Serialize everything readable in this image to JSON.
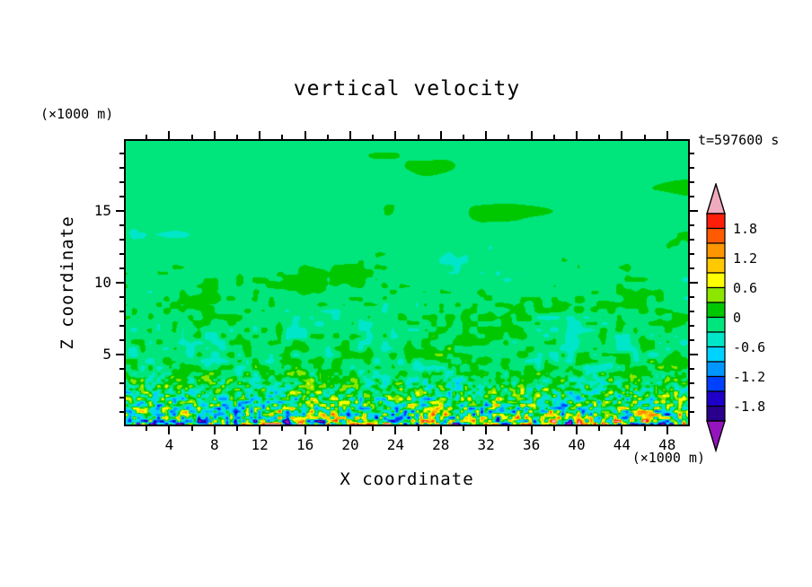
{
  "title": "vertical velocity",
  "timestamp": "t=597600 s",
  "axes": {
    "x": {
      "label": "X coordinate",
      "unit": "(×1000 m)",
      "range": [
        0,
        50
      ],
      "major_ticks": [
        4,
        8,
        12,
        16,
        20,
        24,
        28,
        32,
        36,
        40,
        44,
        48
      ],
      "minor_step": 2
    },
    "z": {
      "label": "Z coordinate",
      "unit": "(×1000 m)",
      "range": [
        0,
        20
      ],
      "major_ticks": [
        5,
        10,
        15
      ],
      "minor_step": 1
    }
  },
  "chart_data": {
    "type": "heatmap",
    "subtype": "filled-contour",
    "variable": "vertical velocity",
    "title": "vertical velocity",
    "time_label": "t=597600 s",
    "time_s": 597600,
    "xlabel": "X coordinate (×1000 m)",
    "ylabel": "Z coordinate (×1000 m)",
    "x_range": [
      0,
      50
    ],
    "z_range": [
      0,
      20
    ],
    "contour_interval": 0.3,
    "levels": [
      -2.1,
      -1.8,
      -1.5,
      -1.2,
      -0.9,
      -0.6,
      -0.3,
      0,
      0.3,
      0.6,
      0.9,
      1.2,
      1.5,
      1.8,
      2.1
    ],
    "band_colors": [
      "#28008C",
      "#1E00C8",
      "#0041FF",
      "#0096FF",
      "#00D2FF",
      "#00E6C8",
      "#00E67D",
      "#00C800",
      "#8CE600",
      "#FFFF00",
      "#FFC800",
      "#FF9600",
      "#FF5A00",
      "#FF1E0A"
    ],
    "under_color": "#9614BE",
    "over_color": "#F0AABE",
    "background_band_color": "#00E67D",
    "colorbar_tick_labels": [
      {
        "text": "1.8",
        "value": 1.8
      },
      {
        "text": "1.2",
        "value": 1.2
      },
      {
        "text": "0.6",
        "value": 0.6
      },
      {
        "text": "0",
        "value": 0
      },
      {
        "text": "-0.6",
        "value": -0.6
      },
      {
        "text": "-1.2",
        "value": -1.2
      },
      {
        "text": "-1.8",
        "value": -1.8
      }
    ],
    "description": "Turbulent vertical-velocity cross-section: near-zero (-0.3 to 0 band) background aloft, broad weak updraft blobs (0 to 0.3) between z of 8 and 16 km, fine convective speckle below z of 8 km, and strong alternating updraft/downdraft couplets reaching beyond +-1.8 in the lowest 2 km.",
    "noise_model": {
      "base": -0.1,
      "blob": {
        "sx": 70,
        "sy": 26,
        "sx2": 33,
        "sy2": 13,
        "amp": 0.33,
        "top_fade": 0.22,
        "bottom_fade": 0.45
      },
      "speckle": {
        "sx": 9,
        "sy": 7,
        "amp": 0.6,
        "start": 0.25,
        "exp": 1.3
      },
      "bottom": {
        "sx": 4.5,
        "sy": 3.5,
        "amp": 2.0,
        "start": 0.72,
        "exp": 2.2
      },
      "streaks": {
        "sx": 14,
        "sy": 4,
        "amp": 1.3,
        "start": 0.92,
        "exp": 2.0
      }
    }
  }
}
